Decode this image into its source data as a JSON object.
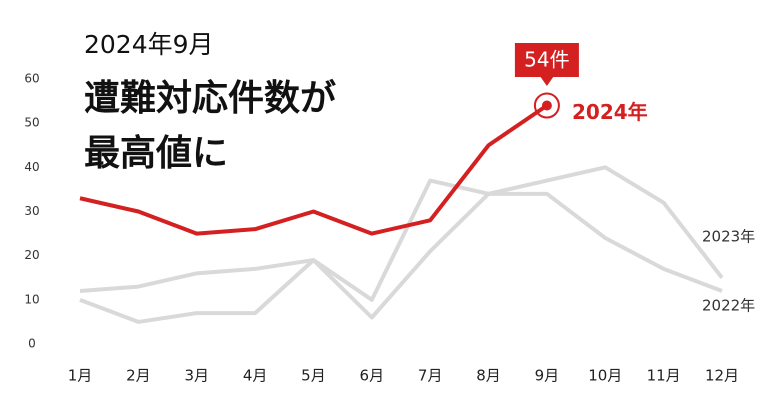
{
  "chart_data": {
    "type": "line",
    "subtitle": "2024年9月",
    "title_lines": [
      "遭難対応件数が",
      "最高値に"
    ],
    "categories": [
      "1月",
      "2月",
      "3月",
      "4月",
      "5月",
      "6月",
      "7月",
      "8月",
      "9月",
      "10月",
      "11月",
      "12月"
    ],
    "series": [
      {
        "name": "2024年",
        "color": "#d42020",
        "values": [
          33,
          30,
          25,
          26,
          30,
          25,
          28,
          45,
          54,
          null,
          null,
          null
        ],
        "value_labels": [
          null,
          null,
          null,
          null,
          null,
          null,
          null,
          null,
          "54件",
          null,
          null,
          null
        ]
      },
      {
        "name": "2023年",
        "color": "#d9d9d9",
        "values": [
          10,
          5,
          7,
          7,
          19,
          6,
          21,
          34,
          37,
          40,
          32,
          15
        ]
      },
      {
        "name": "2022年",
        "color": "#d9d9d9",
        "values": [
          12,
          13,
          16,
          17,
          19,
          10,
          37,
          34,
          34,
          24,
          17,
          12
        ]
      }
    ],
    "ylim": [
      0,
      60
    ],
    "yticks": [
      0,
      10,
      20,
      30,
      40,
      50,
      60
    ],
    "grid": false
  }
}
